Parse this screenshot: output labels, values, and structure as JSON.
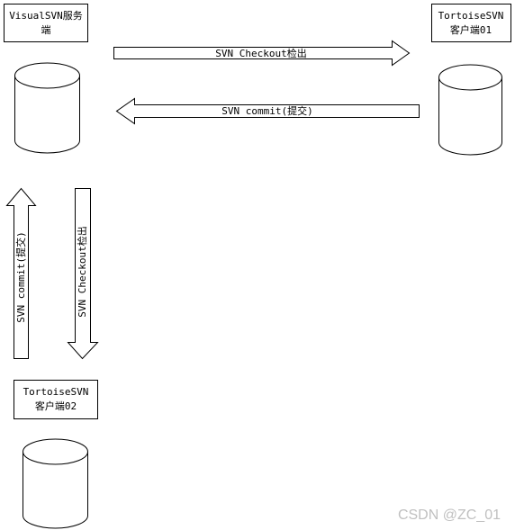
{
  "server_box": {
    "line1": "VisualSVN服务",
    "line2": "端"
  },
  "client01_box": {
    "line1": "TortoiseSVN",
    "line2": "客户端01"
  },
  "client02_box": {
    "line1": "TortoiseSVN",
    "line2": "客户端02"
  },
  "arrows": {
    "top_checkout": "SVN Checkout检出",
    "top_commit": "SVN commit(提交)",
    "left_commit": "SVN commit(提交)",
    "left_checkout": "SVN Checkout检出"
  },
  "watermark": "CSDN @ZC_01"
}
